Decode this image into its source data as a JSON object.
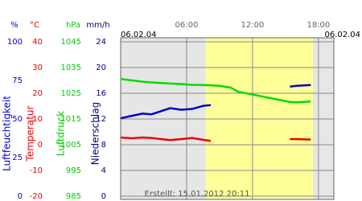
{
  "chart_data": {
    "type": "line",
    "date_left": "06.02.04",
    "date_right": "06.02.04",
    "footer": "Erstellt: 15.01.2012 20:11",
    "daylight": [
      7.75,
      17.5
    ],
    "xlim": [
      0,
      19.4
    ],
    "xticks": [
      {
        "value": 6,
        "label": "06:00"
      },
      {
        "value": 12,
        "label": "12:00"
      },
      {
        "value": 18,
        "label": "18:00"
      }
    ],
    "x": [
      0,
      1,
      2,
      2.8,
      4.5,
      5.5,
      6.5,
      7.5,
      8.2,
      9,
      10,
      10.7,
      15.4,
      16,
      17.3
    ],
    "axes": [
      {
        "unit": "%",
        "label": "Luftfeuchtigkeit",
        "color": "#0000cc",
        "ylim": [
          0,
          100
        ],
        "yticks": [
          0,
          25,
          50,
          75,
          100
        ]
      },
      {
        "unit": "°C",
        "label": "Temperatur",
        "color": "#ee0000",
        "ylim": [
          -20,
          40
        ],
        "yticks": [
          -20,
          -10,
          0,
          10,
          20,
          30,
          40
        ]
      },
      {
        "unit": "hPa",
        "label": "Luftdruck",
        "color": "#00cc00",
        "ylim": [
          985,
          1045
        ],
        "yticks": [
          985,
          995,
          1005,
          1015,
          1025,
          1035,
          1045
        ]
      },
      {
        "unit": "mm/h",
        "label": "Niederschlag",
        "color": "#000080",
        "ylim": [
          0,
          24
        ],
        "yticks": [
          0,
          4,
          8,
          12,
          16,
          20,
          24
        ]
      }
    ],
    "series": [
      {
        "axis": 0,
        "color": "#0000cc",
        "values": [
          50.5,
          52,
          53.5,
          53,
          57,
          56,
          56.5,
          58.5,
          59,
          null,
          null,
          null,
          71,
          71.5,
          72
        ]
      },
      {
        "axis": 1,
        "color": "#ee0000",
        "values": [
          2.8,
          2.5,
          2.8,
          2.6,
          1.8,
          2.2,
          2.6,
          1.9,
          1.5,
          null,
          null,
          null,
          2.2,
          2.2,
          2.0
        ]
      },
      {
        "axis": 2,
        "color": "#00dd00",
        "values": [
          1030.6,
          1030.0,
          1029.5,
          1029.2,
          1028.8,
          1028.6,
          1028.3,
          1028.2,
          1028.1,
          1027.9,
          1027.2,
          1025.6,
          1021.6,
          1021.5,
          1021.8
        ]
      }
    ]
  }
}
